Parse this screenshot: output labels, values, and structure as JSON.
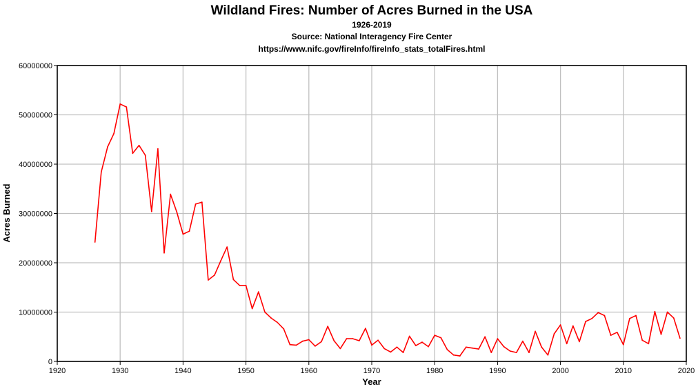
{
  "chart_data": {
    "type": "line",
    "title": "Wildland Fires: Number of Acres Burned in the USA",
    "subtitles": [
      "1926-2019",
      "Source: National Interagency Fire Center",
      "https://www.nifc.gov/fireInfo/fireInfo_stats_totalFires.html"
    ],
    "xlabel": "Year",
    "ylabel": "Acres Burned",
    "xlim": [
      1920,
      2020
    ],
    "ylim": [
      0,
      60000000
    ],
    "x_ticks": [
      "1920",
      "1930",
      "1940",
      "1950",
      "1960",
      "1970",
      "1980",
      "1990",
      "2000",
      "2010",
      "2020"
    ],
    "y_ticks": [
      "0",
      "10000000",
      "20000000",
      "30000000",
      "40000000",
      "50000000",
      "60000000"
    ],
    "grid": true,
    "series": [
      {
        "name": "Acres Burned",
        "color": "#ff0000",
        "x": [
          1926,
          1927,
          1928,
          1929,
          1930,
          1931,
          1932,
          1933,
          1934,
          1935,
          1936,
          1937,
          1938,
          1939,
          1940,
          1941,
          1942,
          1943,
          1944,
          1945,
          1946,
          1947,
          1948,
          1949,
          1950,
          1951,
          1952,
          1953,
          1954,
          1955,
          1956,
          1957,
          1958,
          1959,
          1960,
          1961,
          1962,
          1963,
          1964,
          1965,
          1966,
          1967,
          1968,
          1969,
          1970,
          1971,
          1972,
          1973,
          1974,
          1975,
          1976,
          1977,
          1978,
          1979,
          1980,
          1981,
          1982,
          1983,
          1984,
          1985,
          1986,
          1987,
          1988,
          1989,
          1990,
          1991,
          1992,
          1993,
          1994,
          1995,
          1996,
          1997,
          1998,
          1999,
          2000,
          2001,
          2002,
          2003,
          2004,
          2005,
          2006,
          2007,
          2008,
          2009,
          2010,
          2011,
          2012,
          2013,
          2014,
          2015,
          2016,
          2017,
          2018,
          2019
        ],
        "values": [
          24200000,
          38400000,
          43500000,
          46200000,
          52200000,
          51600000,
          42200000,
          43800000,
          41800000,
          30400000,
          43100000,
          22000000,
          33900000,
          30300000,
          25800000,
          26400000,
          31900000,
          32300000,
          16500000,
          17500000,
          20400000,
          23200000,
          16600000,
          15400000,
          15400000,
          10700000,
          14100000,
          10000000,
          8800000,
          7900000,
          6600000,
          3400000,
          3300000,
          4100000,
          4400000,
          3100000,
          4000000,
          7100000,
          4200000,
          2600000,
          4600000,
          4600000,
          4200000,
          6700000,
          3300000,
          4300000,
          2600000,
          1900000,
          2900000,
          1800000,
          5100000,
          3200000,
          3900000,
          3000000,
          5300000,
          4800000,
          2400000,
          1300000,
          1100000,
          2900000,
          2700000,
          2500000,
          5000000,
          1800000,
          4600000,
          3000000,
          2100000,
          1800000,
          4100000,
          1800000,
          6100000,
          2900000,
          1300000,
          5600000,
          7400000,
          3600000,
          7200000,
          4000000,
          8100000,
          8700000,
          9900000,
          9300000,
          5300000,
          5900000,
          3400000,
          8700000,
          9300000,
          4300000,
          3600000,
          10100000,
          5500000,
          10000000,
          8800000,
          4700000
        ]
      }
    ]
  }
}
